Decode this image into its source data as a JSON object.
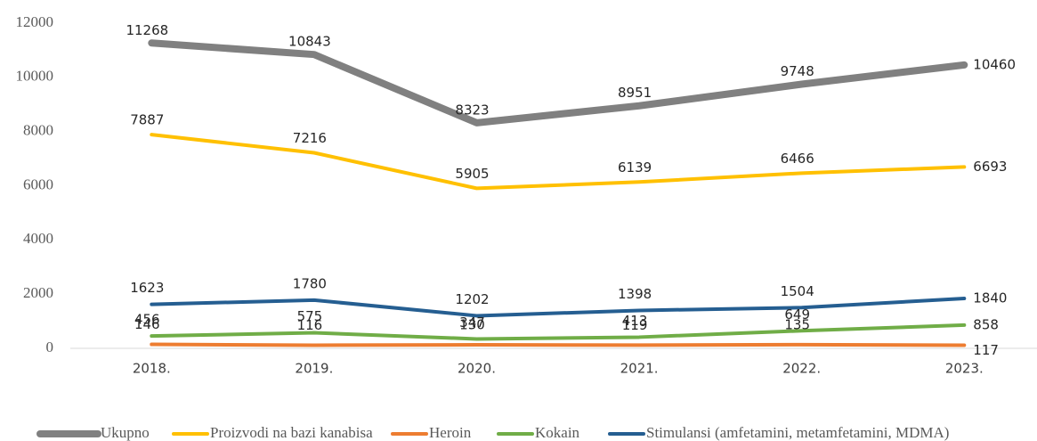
{
  "chart_data": {
    "type": "line",
    "categories": [
      "2018.",
      "2019.",
      "2020.",
      "2021.",
      "2022.",
      "2023."
    ],
    "series": [
      {
        "name": "Ukupno",
        "color": "#808080",
        "values": [
          11268,
          10843,
          8323,
          8951,
          9748,
          10460
        ]
      },
      {
        "name": "Proizvodi na bazi kanabisa",
        "color": "#ffc000",
        "values": [
          7887,
          7216,
          5905,
          6139,
          6466,
          6693
        ]
      },
      {
        "name": "Heroin",
        "color": "#ed7d31",
        "values": [
          146,
          116,
          130,
          119,
          135,
          117
        ]
      },
      {
        "name": "Kokain",
        "color": "#70ad47",
        "values": [
          456,
          575,
          347,
          413,
          649,
          858
        ]
      },
      {
        "name": "Stimulansi (amfetamini, metamfetamini, MDMA)",
        "color": "#255e91",
        "values": [
          1623,
          1780,
          1202,
          1398,
          1504,
          1840
        ]
      }
    ],
    "ylim": [
      0,
      12000
    ],
    "yticks": [
      0,
      2000,
      4000,
      6000,
      8000,
      10000,
      12000
    ],
    "legend": "bottom"
  }
}
